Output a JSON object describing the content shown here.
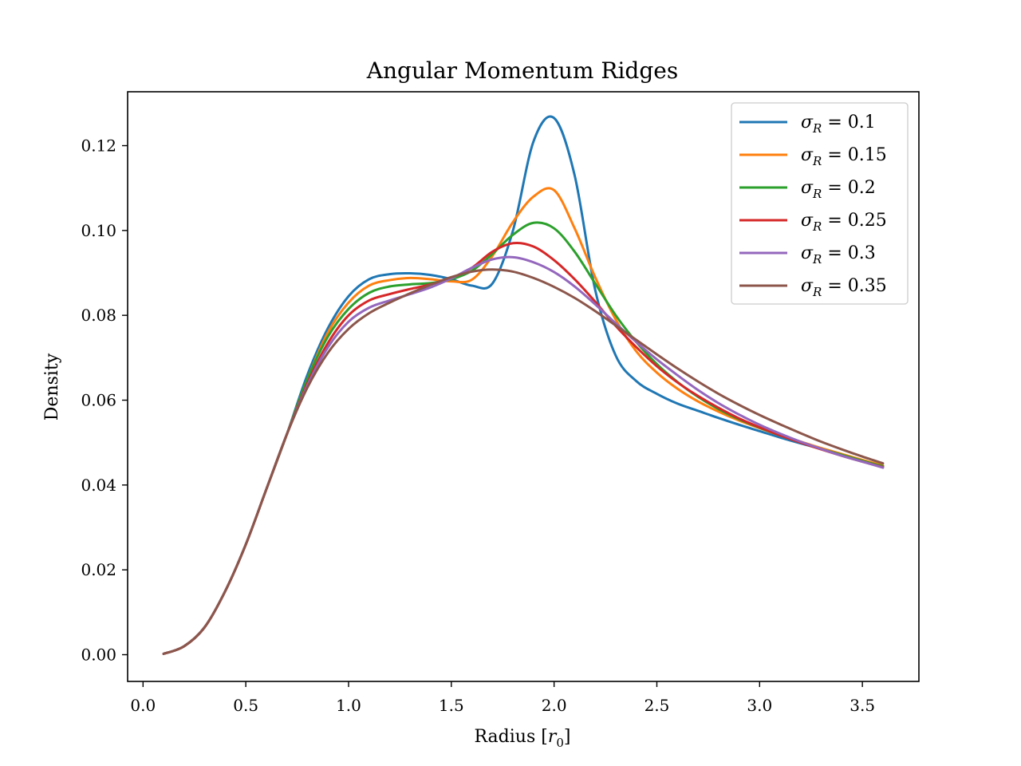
{
  "chart_data": {
    "type": "line",
    "title": "Angular Momentum Ridges",
    "xlabel_main": "Radius [",
    "xlabel_var": "r",
    "xlabel_sub": "0",
    "xlabel_end": "]",
    "ylabel": "Density",
    "xlim": [
      -0.075,
      3.775
    ],
    "ylim": [
      -0.0063,
      0.1327
    ],
    "xticks": [
      0.0,
      0.5,
      1.0,
      1.5,
      2.0,
      2.5,
      3.0,
      3.5
    ],
    "xtick_labels": [
      "0.0",
      "0.5",
      "1.0",
      "1.5",
      "2.0",
      "2.5",
      "3.0",
      "3.5"
    ],
    "yticks": [
      0.0,
      0.02,
      0.04,
      0.06,
      0.08,
      0.1,
      0.12
    ],
    "ytick_labels": [
      "0.00",
      "0.02",
      "0.04",
      "0.06",
      "0.08",
      "0.10",
      "0.12"
    ],
    "grid": false,
    "legend_position": "top-right",
    "x": [
      0.1,
      0.2,
      0.3,
      0.4,
      0.5,
      0.6,
      0.7,
      0.8,
      0.9,
      1.0,
      1.1,
      1.2,
      1.3,
      1.4,
      1.5,
      1.6,
      1.7,
      1.8,
      1.9,
      2.0,
      2.1,
      2.2,
      2.3,
      2.4,
      2.5,
      2.6,
      2.7,
      2.8,
      2.9,
      3.0,
      3.1,
      3.2,
      3.3,
      3.4,
      3.5,
      3.6
    ],
    "series": [
      {
        "label_var": "σ",
        "label_sub": "R",
        "label_val": " = 0.1",
        "color": "#1f77b4",
        "values": [
          0.0002,
          0.002,
          0.0065,
          0.015,
          0.026,
          0.039,
          0.052,
          0.066,
          0.077,
          0.0845,
          0.0885,
          0.0897,
          0.0899,
          0.0895,
          0.0885,
          0.087,
          0.0875,
          0.1,
          0.121,
          0.1265,
          0.113,
          0.086,
          0.0705,
          0.0645,
          0.0615,
          0.0592,
          0.0575,
          0.0558,
          0.0542,
          0.0527,
          0.0512,
          0.0498,
          0.0485,
          0.0471,
          0.0458,
          0.0445
        ]
      },
      {
        "label_var": "σ",
        "label_sub": "R",
        "label_val": " = 0.15",
        "color": "#ff7f0e",
        "values": [
          0.0002,
          0.002,
          0.0065,
          0.015,
          0.026,
          0.039,
          0.052,
          0.065,
          0.076,
          0.083,
          0.087,
          0.0883,
          0.0888,
          0.0885,
          0.088,
          0.0884,
          0.094,
          0.102,
          0.108,
          0.1095,
          0.1005,
          0.089,
          0.079,
          0.0715,
          0.0665,
          0.0627,
          0.0597,
          0.0573,
          0.0552,
          0.0534,
          0.0517,
          0.0502,
          0.0487,
          0.0473,
          0.0459,
          0.0446
        ]
      },
      {
        "label_var": "σ",
        "label_sub": "R",
        "label_val": " = 0.2",
        "color": "#2ca02c",
        "values": [
          0.0002,
          0.002,
          0.0065,
          0.015,
          0.026,
          0.039,
          0.052,
          0.065,
          0.075,
          0.0815,
          0.0853,
          0.0868,
          0.0873,
          0.0876,
          0.0885,
          0.0905,
          0.0945,
          0.099,
          0.1018,
          0.1005,
          0.095,
          0.0875,
          0.08,
          0.0737,
          0.0685,
          0.0643,
          0.0608,
          0.0579,
          0.0555,
          0.0535,
          0.0517,
          0.05,
          0.0485,
          0.0471,
          0.0457,
          0.0444
        ]
      },
      {
        "label_var": "σ",
        "label_sub": "R",
        "label_val": " = 0.25",
        "color": "#d62728",
        "values": [
          0.0002,
          0.002,
          0.0065,
          0.015,
          0.026,
          0.039,
          0.052,
          0.064,
          0.0735,
          0.08,
          0.0835,
          0.085,
          0.0862,
          0.0873,
          0.0888,
          0.0912,
          0.095,
          0.097,
          0.0962,
          0.093,
          0.0885,
          0.0832,
          0.0775,
          0.0725,
          0.068,
          0.0642,
          0.061,
          0.0582,
          0.0557,
          0.0536,
          0.0517,
          0.05,
          0.0484,
          0.0469,
          0.0455,
          0.0442
        ]
      },
      {
        "label_var": "σ",
        "label_sub": "R",
        "label_val": " = 0.3",
        "color": "#9467bd",
        "values": [
          0.0002,
          0.002,
          0.0065,
          0.015,
          0.026,
          0.039,
          0.052,
          0.0635,
          0.0725,
          0.0785,
          0.0818,
          0.0835,
          0.085,
          0.0866,
          0.0887,
          0.0912,
          0.0932,
          0.0937,
          0.0925,
          0.0902,
          0.0868,
          0.0826,
          0.0781,
          0.0737,
          0.0696,
          0.0659,
          0.0624,
          0.0593,
          0.0566,
          0.0542,
          0.0521,
          0.0502,
          0.0485,
          0.0469,
          0.0455,
          0.0441
        ]
      },
      {
        "label_var": "σ",
        "label_sub": "R",
        "label_val": " = 0.35",
        "color": "#8c564b",
        "values": [
          0.0002,
          0.002,
          0.0065,
          0.015,
          0.026,
          0.039,
          0.052,
          0.063,
          0.0712,
          0.0768,
          0.0805,
          0.083,
          0.0852,
          0.0872,
          0.089,
          0.0903,
          0.0908,
          0.0903,
          0.0888,
          0.0867,
          0.0841,
          0.081,
          0.0776,
          0.0742,
          0.0708,
          0.0675,
          0.0644,
          0.0615,
          0.0589,
          0.0565,
          0.0543,
          0.0522,
          0.0502,
          0.0484,
          0.0467,
          0.0451
        ]
      }
    ]
  }
}
